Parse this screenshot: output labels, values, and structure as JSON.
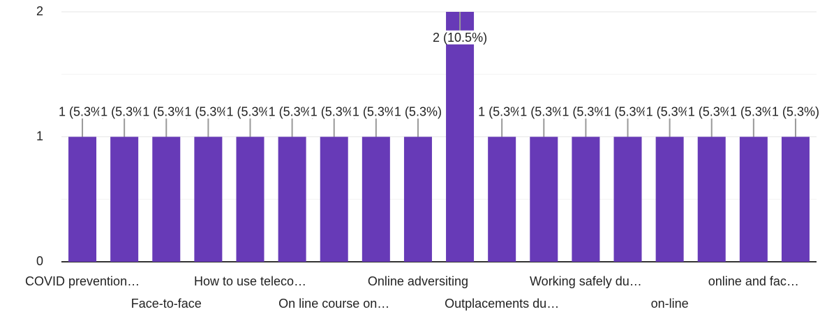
{
  "chart_data": {
    "type": "bar",
    "categories": [
      "COVID prevention…",
      null,
      "Face-to-face",
      null,
      "How to use teleco…",
      null,
      "On line course on…",
      null,
      "Online adversiting",
      null,
      "Outplacements du…",
      null,
      "Working safely du…",
      null,
      "on-line",
      null,
      "online and fac…",
      null
    ],
    "values": [
      1,
      1,
      1,
      1,
      1,
      1,
      1,
      1,
      1,
      2,
      1,
      1,
      1,
      1,
      1,
      1,
      1,
      1
    ],
    "value_labels": [
      "1 (5.3%)",
      "1 (5.3%)",
      "1 (5.3%)",
      "1 (5.3%)",
      "1 (5.3%)",
      "1 (5.3%)",
      "1 (5.3%)",
      "1 (5.3%)",
      "1 (5.3%)",
      "2 (10.5%)",
      "1 (5.3%)",
      "1 (5.3%)",
      "1 (5.3%)",
      "1 (5.3%)",
      "1 (5.3%)",
      "1 (5.3%)",
      "1 (5.3%)",
      "1 (5.3%)"
    ],
    "color": "#673ab7",
    "ylim": [
      0,
      2
    ],
    "yticks": [
      0,
      1,
      2
    ],
    "minor_yticks": [
      0.5,
      1.5
    ],
    "grid": true
  }
}
